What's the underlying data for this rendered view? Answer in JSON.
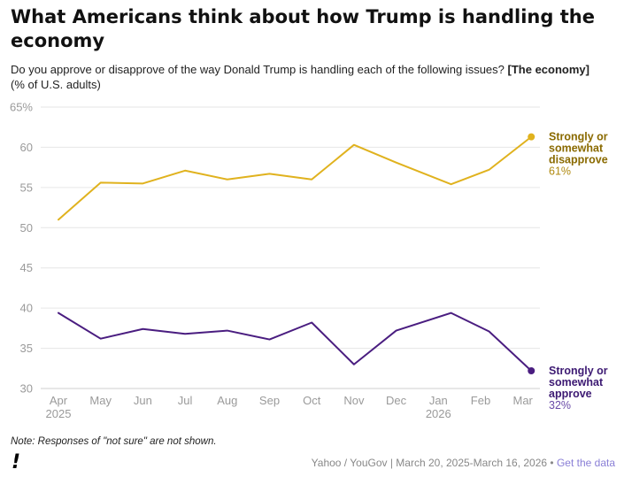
{
  "header": {
    "title": "What Americans think about how Trump is handling the economy",
    "subtitle": "Do you approve or disapprove of the way Donald Trump is handling each of the following issues?",
    "subtitle_bold": "[The economy]",
    "unit": "(% of U.S. adults)"
  },
  "footer": {
    "note": "Note: Responses of \"not sure\" are not shown.",
    "logo": "!",
    "source": "Yahoo / YouGov | March 20, 2025-March 16, 2026",
    "bullet": "•",
    "link": "Get the data"
  },
  "chart_data": {
    "type": "line",
    "ylim": [
      30,
      65
    ],
    "yticks": [
      "65%",
      "60",
      "55",
      "50",
      "45",
      "40",
      "35",
      "30"
    ],
    "x": [
      "Apr",
      "May",
      "Jun",
      "Jul",
      "Aug",
      "Sep",
      "Oct",
      "Nov",
      "Dec",
      "Jan",
      "Feb",
      "Mar"
    ],
    "year_labels": [
      {
        "index": 0,
        "label": "2025"
      },
      {
        "index": 9,
        "label": "2026"
      }
    ],
    "series": [
      {
        "name": "Strongly or somewhat disapprove",
        "label_lines": [
          "Strongly or",
          "somewhat",
          "disapprove"
        ],
        "end_label": "61%",
        "color": "#e0b21e",
        "label_color": "#8a6a00",
        "points": [
          [
            0,
            51.0
          ],
          [
            1,
            55.6
          ],
          [
            2,
            55.5
          ],
          [
            3,
            57.1
          ],
          [
            4,
            56.0
          ],
          [
            5,
            56.7
          ],
          [
            6,
            56.0
          ],
          [
            7,
            60.3
          ],
          [
            8,
            58.1
          ],
          [
            9.3,
            55.4
          ],
          [
            10.2,
            57.2
          ],
          [
            11.2,
            61.3
          ]
        ]
      },
      {
        "name": "Strongly or somewhat approve",
        "label_lines": [
          "Strongly or",
          "somewhat",
          "approve"
        ],
        "end_label": "32%",
        "color": "#4a1d80",
        "label_color": "#3d1a73",
        "points": [
          [
            0,
            39.4
          ],
          [
            1,
            36.2
          ],
          [
            2,
            37.4
          ],
          [
            3,
            36.8
          ],
          [
            4,
            37.2
          ],
          [
            5,
            36.1
          ],
          [
            6,
            38.2
          ],
          [
            7,
            33.0
          ],
          [
            8,
            37.2
          ],
          [
            9.3,
            39.4
          ],
          [
            10.2,
            37.1
          ],
          [
            11.2,
            32.2
          ]
        ]
      }
    ]
  }
}
